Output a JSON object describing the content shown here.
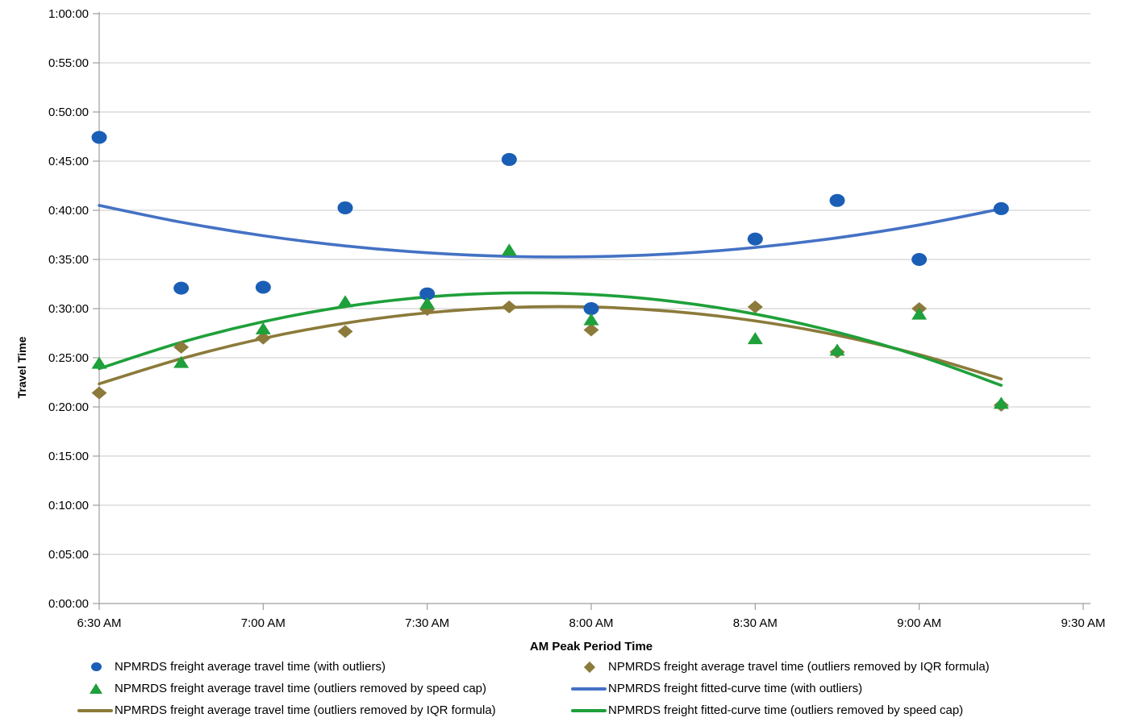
{
  "chart_data": {
    "type": "scatter",
    "title": "",
    "x_axis": {
      "label": "AM Peak Period Time",
      "ticks": [
        "6:30 AM",
        "7:00 AM",
        "7:30 AM",
        "8:00 AM",
        "8:30 AM",
        "9:00 AM",
        "9:30 AM"
      ],
      "tick_hours": [
        6.5,
        7.0,
        7.5,
        8.0,
        8.5,
        9.0,
        9.5
      ],
      "range_hours": [
        6.5,
        9.5
      ]
    },
    "y_axis": {
      "label": "Travel Time",
      "ticks": [
        "0:00:00",
        "0:05:00",
        "0:10:00",
        "0:15:00",
        "0:20:00",
        "0:25:00",
        "0:30:00",
        "0:35:00",
        "0:40:00",
        "0:45:00",
        "0:50:00",
        "0:55:00",
        "1:00:00"
      ],
      "tick_minutes": [
        0,
        5,
        10,
        15,
        20,
        25,
        30,
        35,
        40,
        45,
        50,
        55,
        60
      ],
      "range_minutes": [
        0,
        60
      ],
      "step_minutes": 5
    },
    "grid": "horizontal-only",
    "legend_position": "bottom",
    "colors": {
      "blue": "#1a5eb6",
      "blue_line": "#4472c4",
      "olive": "#8b7a3a",
      "green": "#1ea03a",
      "gridline": "#c9c9c9",
      "axis": "#9e9e9e",
      "text": "#000000"
    },
    "series": [
      {
        "name": "NPMRDS freight average travel time (with outliers)",
        "kind": "scatter",
        "marker": "circle",
        "color_key": "blue",
        "x_labels": [
          "6:30 AM",
          "6:45 AM",
          "7:00 AM",
          "7:15 AM",
          "7:30 AM",
          "7:45 AM",
          "8:00 AM",
          "8:30 AM",
          "8:45 AM",
          "9:00 AM",
          "9:15 AM"
        ],
        "x_hours": [
          6.5,
          6.75,
          7.0,
          7.25,
          7.5,
          7.75,
          8.0,
          8.5,
          8.75,
          9.0,
          9.25
        ],
        "values_hms": [
          "0:47:25",
          "0:32:05",
          "0:32:10",
          "0:40:15",
          "0:31:30",
          "0:45:10",
          "0:30:00",
          "0:37:05",
          "0:41:00",
          "0:35:00",
          "0:40:10"
        ],
        "values_minutes": [
          47.42,
          32.08,
          32.17,
          40.25,
          31.5,
          45.17,
          30.0,
          37.08,
          41.0,
          35.0,
          40.17
        ]
      },
      {
        "name": "NPMRDS freight average travel time (outliers removed by IQR formula)",
        "kind": "scatter",
        "marker": "diamond",
        "color_key": "olive",
        "x_labels": [
          "6:30 AM",
          "6:45 AM",
          "7:00 AM",
          "7:15 AM",
          "7:30 AM",
          "7:45 AM",
          "8:00 AM",
          "8:30 AM",
          "8:45 AM",
          "9:00 AM",
          "9:15 AM"
        ],
        "x_hours": [
          6.5,
          6.75,
          7.0,
          7.25,
          7.5,
          7.75,
          8.0,
          8.5,
          8.75,
          9.0,
          9.25
        ],
        "values_hms": [
          "0:21:25",
          "0:26:05",
          "0:27:00",
          "0:27:40",
          "0:29:55",
          "0:30:10",
          "0:27:50",
          "0:30:10",
          "0:25:35",
          "0:30:00",
          "0:20:10"
        ],
        "values_minutes": [
          21.42,
          26.08,
          27.0,
          27.67,
          29.92,
          30.17,
          27.83,
          30.17,
          25.58,
          30.0,
          20.17
        ]
      },
      {
        "name": "NPMRDS freight average travel time (outliers removed by speed cap)",
        "kind": "scatter",
        "marker": "triangle",
        "color_key": "green",
        "x_labels": [
          "6:30 AM",
          "6:45 AM",
          "7:00 AM",
          "7:15 AM",
          "7:30 AM",
          "7:45 AM",
          "8:00 AM",
          "8:30 AM",
          "8:45 AM",
          "9:00 AM",
          "9:15 AM"
        ],
        "x_hours": [
          6.5,
          6.75,
          7.0,
          7.25,
          7.5,
          7.75,
          8.0,
          8.5,
          8.75,
          9.0,
          9.25
        ],
        "values_hms": [
          "0:24:30",
          "0:24:35",
          "0:28:00",
          "0:30:45",
          "0:30:35",
          "0:36:00",
          "0:28:55",
          "0:27:00",
          "0:25:50",
          "0:29:30",
          "0:20:25"
        ],
        "values_minutes": [
          24.5,
          24.58,
          28.0,
          30.75,
          30.58,
          36.0,
          28.92,
          27.0,
          25.83,
          29.5,
          20.42
        ]
      },
      {
        "name": "NPMRDS freight fitted-curve time (with outliers)",
        "kind": "line",
        "color_key": "blue_line",
        "x_hours": [
          6.5,
          6.75,
          7.0,
          7.25,
          7.5,
          7.75,
          8.0,
          8.25,
          8.5,
          8.75,
          9.0,
          9.25
        ],
        "values_minutes": [
          40.5,
          38.79,
          37.42,
          36.38,
          35.68,
          35.31,
          35.28,
          35.58,
          36.22,
          37.2,
          38.51,
          40.15
        ]
      },
      {
        "name": "NPMRDS freight average travel time (outliers removed by IQR formula)",
        "kind": "line",
        "color_key": "olive",
        "x_hours": [
          6.5,
          6.75,
          7.0,
          7.25,
          7.5,
          7.75,
          8.0,
          8.25,
          8.5,
          8.75,
          9.0,
          9.25
        ],
        "values_minutes": [
          22.35,
          24.91,
          26.97,
          28.52,
          29.57,
          30.12,
          30.17,
          29.71,
          28.75,
          27.29,
          25.32,
          22.85
        ]
      },
      {
        "name": "NPMRDS freight fitted-curve time (outliers removed by speed cap)",
        "kind": "line",
        "color_key": "green",
        "x_hours": [
          6.5,
          6.75,
          7.0,
          7.25,
          7.5,
          7.75,
          8.0,
          8.25,
          8.5,
          8.75,
          9.0,
          9.25
        ],
        "values_minutes": [
          23.9,
          26.57,
          28.67,
          30.21,
          31.18,
          31.59,
          31.44,
          30.72,
          29.44,
          27.59,
          25.18,
          22.2
        ]
      }
    ],
    "legend": {
      "columns": [
        [
          {
            "icon": "circle",
            "color_key": "blue",
            "label": "NPMRDS freight average travel time (with outliers)"
          },
          {
            "icon": "triangle",
            "color_key": "green",
            "label": "NPMRDS freight average travel time (outliers removed by speed cap)"
          },
          {
            "icon": "line",
            "color_key": "olive",
            "label": "NPMRDS freight average travel time (outliers removed by IQR formula)"
          }
        ],
        [
          {
            "icon": "diamond",
            "color_key": "olive",
            "label": "NPMRDS freight average travel time (outliers removed by IQR formula)"
          },
          {
            "icon": "line",
            "color_key": "blue_line",
            "label": "NPMRDS freight fitted-curve time (with outliers)"
          },
          {
            "icon": "line",
            "color_key": "green",
            "label": "NPMRDS freight fitted-curve time (outliers removed by speed cap)"
          }
        ]
      ]
    }
  }
}
